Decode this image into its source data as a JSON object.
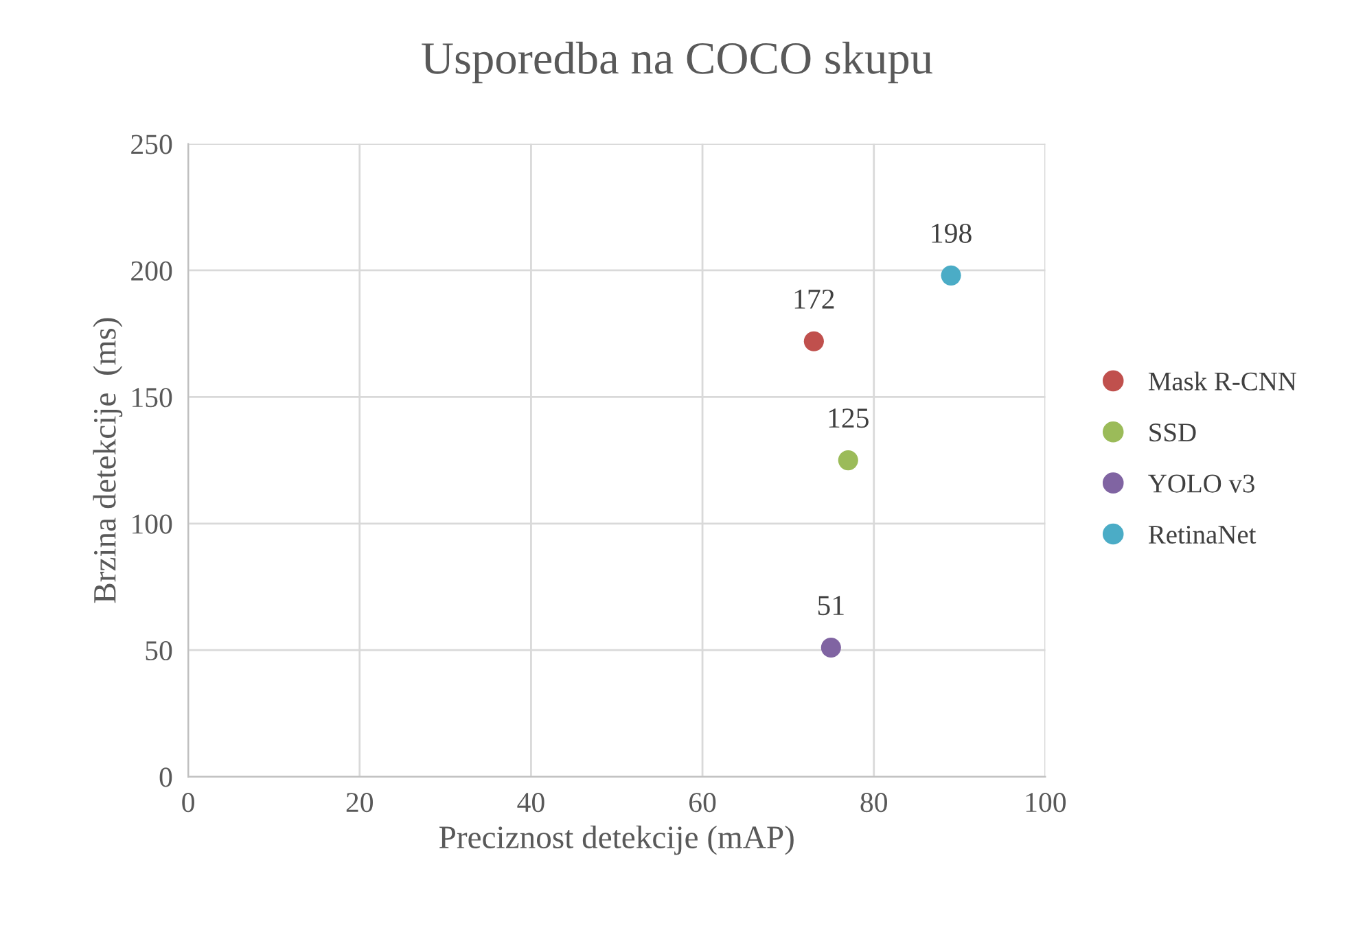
{
  "chart_data": {
    "type": "scatter",
    "title": "Usporedba na COCO skupu",
    "xlabel": "Preciznost detekcije (mAP)",
    "ylabel": "Brzina detekcije  (ms)",
    "series": [
      {
        "name": "Mask R-CNN",
        "color": "#c0504d",
        "x": [
          73
        ],
        "values": [
          172
        ]
      },
      {
        "name": "SSD",
        "color": "#9bbb59",
        "x": [
          77
        ],
        "values": [
          125
        ]
      },
      {
        "name": "YOLO v3",
        "color": "#8064a2",
        "x": [
          75
        ],
        "values": [
          51
        ]
      },
      {
        "name": "RetinaNet",
        "color": "#4bacc6",
        "x": [
          89
        ],
        "values": [
          198
        ]
      }
    ],
    "xlim": [
      0,
      100
    ],
    "xticks": [
      0,
      20,
      40,
      60,
      80,
      100
    ],
    "ylim": [
      0,
      250
    ],
    "yticks": [
      0,
      50,
      100,
      150,
      200,
      250
    ],
    "grid": true,
    "legend": "right",
    "marker": "circle",
    "data_labels": true
  }
}
